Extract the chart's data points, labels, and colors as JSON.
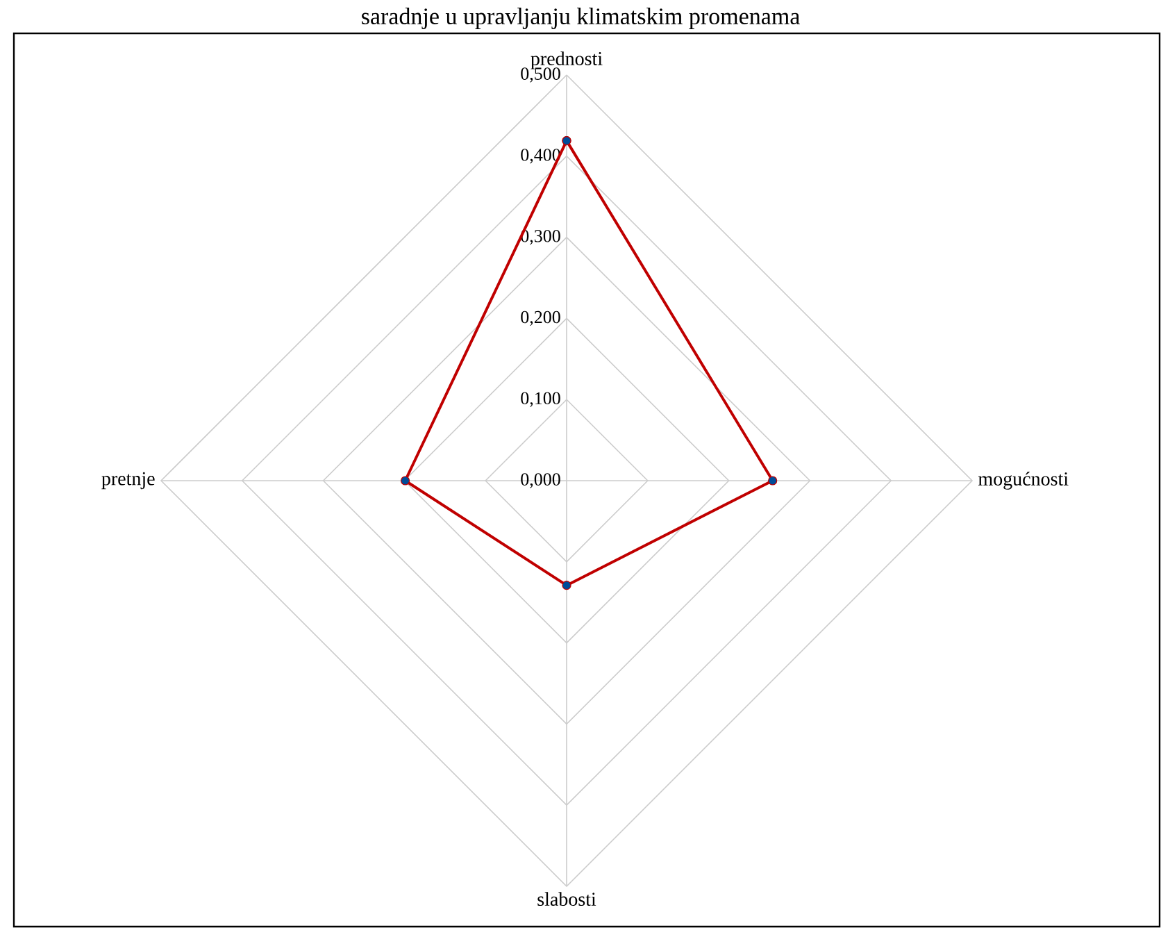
{
  "chart_data": {
    "type": "radar",
    "title": "saradnje u upravljanju klimatskim promenama",
    "categories": [
      "prednosti",
      "mogućnosti",
      "slabosti",
      "pretnje"
    ],
    "series": [
      {
        "color": "#c00000",
        "values": [
          0.419,
          0.254,
          0.129,
          0.199
        ]
      }
    ],
    "ylim": [
      0,
      0.5
    ],
    "yticks": [
      {
        "value": 0,
        "label": "0,000"
      },
      {
        "value": 0.1,
        "label": "0,100"
      },
      {
        "value": 0.2,
        "label": "0,200"
      },
      {
        "value": 0.3,
        "label": "0,300"
      },
      {
        "value": 0.4,
        "label": "0,400"
      },
      {
        "value": 0.5,
        "label": "0,500"
      }
    ],
    "grid": true,
    "marker": "circle",
    "legend": false
  }
}
